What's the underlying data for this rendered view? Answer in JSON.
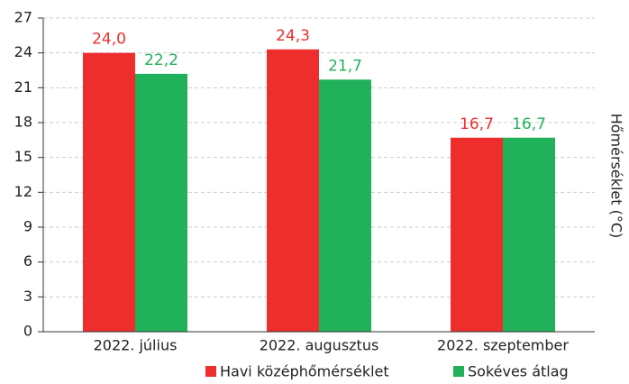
{
  "chart_data": {
    "type": "bar",
    "y_label": "Hőmérséklet (°C)",
    "categories": [
      "2022. július",
      "2022. augusztus",
      "2022. szeptember"
    ],
    "series": [
      {
        "name": "Havi középhőmérséklet",
        "color": "#ee2d2d",
        "values": [
          24.0,
          24.3,
          16.7
        ],
        "value_labels": [
          "24,0",
          "24,3",
          "16,7"
        ]
      },
      {
        "name": "Sokéves átlag",
        "color": "#21b15a",
        "values": [
          22.2,
          21.7,
          16.7
        ],
        "value_labels": [
          "22,2",
          "21,7",
          "16,7"
        ]
      }
    ],
    "ylim": [
      0,
      27
    ],
    "yticks": [
      0,
      3,
      6,
      9,
      12,
      15,
      18,
      21,
      24,
      27
    ],
    "grid": true,
    "legend": "bottom-right"
  }
}
